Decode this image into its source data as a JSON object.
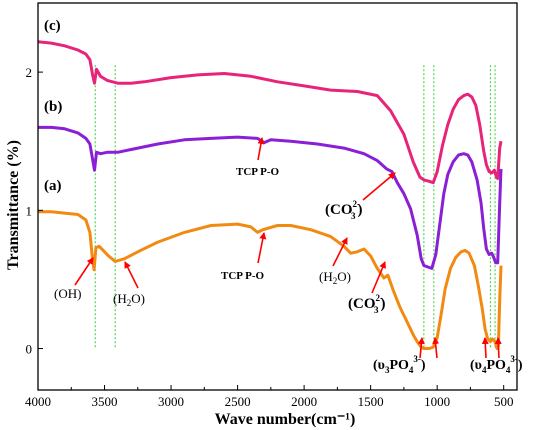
{
  "chart_data": {
    "type": "line",
    "xlabel": "Wave number(cm⁻¹)",
    "ylabel": "Transmittance (%)",
    "xlim": [
      4000,
      400
    ],
    "ylim": [
      -0.3,
      2.5
    ],
    "x_reversed": true,
    "x_ticks": [
      4000,
      3500,
      3000,
      2500,
      2000,
      1500,
      1000,
      500
    ],
    "y_ticks": [
      0,
      1,
      2
    ],
    "grid": false,
    "legend": "none",
    "series": [
      {
        "name": "(c)",
        "color": "#e8247a",
        "points": [
          [
            4000,
            2.22
          ],
          [
            3900,
            2.21
          ],
          [
            3800,
            2.19
          ],
          [
            3700,
            2.16
          ],
          [
            3640,
            2.13
          ],
          [
            3610,
            2.09
          ],
          [
            3590,
            1.98
          ],
          [
            3575,
            1.92
          ],
          [
            3560,
            2.02
          ],
          [
            3530,
            1.97
          ],
          [
            3480,
            1.94
          ],
          [
            3400,
            1.92
          ],
          [
            3300,
            1.92
          ],
          [
            3200,
            1.93
          ],
          [
            3000,
            1.96
          ],
          [
            2800,
            1.98
          ],
          [
            2600,
            1.99
          ],
          [
            2400,
            1.97
          ],
          [
            2200,
            1.93
          ],
          [
            2000,
            1.9
          ],
          [
            1800,
            1.87
          ],
          [
            1600,
            1.86
          ],
          [
            1450,
            1.83
          ],
          [
            1350,
            1.72
          ],
          [
            1250,
            1.55
          ],
          [
            1180,
            1.35
          ],
          [
            1130,
            1.24
          ],
          [
            1100,
            1.22
          ],
          [
            1060,
            1.21
          ],
          [
            1030,
            1.2
          ],
          [
            1000,
            1.28
          ],
          [
            960,
            1.47
          ],
          [
            920,
            1.62
          ],
          [
            880,
            1.73
          ],
          [
            840,
            1.8
          ],
          [
            800,
            1.83
          ],
          [
            770,
            1.84
          ],
          [
            740,
            1.82
          ],
          [
            710,
            1.76
          ],
          [
            680,
            1.62
          ],
          [
            650,
            1.43
          ],
          [
            630,
            1.33
          ],
          [
            610,
            1.28
          ],
          [
            590,
            1.27
          ],
          [
            570,
            1.29
          ],
          [
            555,
            1.24
          ],
          [
            545,
            1.23
          ],
          [
            530,
            1.45
          ],
          [
            520,
            1.5
          ]
        ]
      },
      {
        "name": "(b)",
        "color": "#8a1fd6",
        "points": [
          [
            4000,
            1.6
          ],
          [
            3900,
            1.6
          ],
          [
            3800,
            1.59
          ],
          [
            3700,
            1.56
          ],
          [
            3640,
            1.52
          ],
          [
            3610,
            1.48
          ],
          [
            3590,
            1.37
          ],
          [
            3575,
            1.29
          ],
          [
            3560,
            1.42
          ],
          [
            3530,
            1.41
          ],
          [
            3480,
            1.42
          ],
          [
            3400,
            1.42
          ],
          [
            3300,
            1.44
          ],
          [
            3100,
            1.48
          ],
          [
            2900,
            1.51
          ],
          [
            2700,
            1.52
          ],
          [
            2500,
            1.53
          ],
          [
            2350,
            1.52
          ],
          [
            2300,
            1.49
          ],
          [
            2250,
            1.51
          ],
          [
            2100,
            1.5
          ],
          [
            1900,
            1.48
          ],
          [
            1700,
            1.45
          ],
          [
            1550,
            1.41
          ],
          [
            1450,
            1.36
          ],
          [
            1380,
            1.3
          ],
          [
            1340,
            1.28
          ],
          [
            1300,
            1.2
          ],
          [
            1250,
            1.12
          ],
          [
            1200,
            1.01
          ],
          [
            1150,
            0.82
          ],
          [
            1120,
            0.65
          ],
          [
            1100,
            0.6
          ],
          [
            1070,
            0.59
          ],
          [
            1040,
            0.58
          ],
          [
            1010,
            0.68
          ],
          [
            980,
            0.9
          ],
          [
            950,
            1.12
          ],
          [
            920,
            1.26
          ],
          [
            880,
            1.35
          ],
          [
            840,
            1.4
          ],
          [
            800,
            1.41
          ],
          [
            770,
            1.4
          ],
          [
            740,
            1.35
          ],
          [
            700,
            1.22
          ],
          [
            670,
            1.05
          ],
          [
            650,
            0.87
          ],
          [
            630,
            0.72
          ],
          [
            610,
            0.68
          ],
          [
            590,
            0.69
          ],
          [
            575,
            0.66
          ],
          [
            560,
            0.62
          ],
          [
            545,
            0.62
          ],
          [
            530,
            1.05
          ],
          [
            520,
            1.3
          ]
        ]
      },
      {
        "name": "(a)",
        "color": "#f28a12",
        "points": [
          [
            4000,
            0.99
          ],
          [
            3900,
            0.99
          ],
          [
            3800,
            0.98
          ],
          [
            3700,
            0.97
          ],
          [
            3640,
            0.93
          ],
          [
            3610,
            0.84
          ],
          [
            3590,
            0.64
          ],
          [
            3578,
            0.57
          ],
          [
            3565,
            0.73
          ],
          [
            3540,
            0.74
          ],
          [
            3510,
            0.71
          ],
          [
            3470,
            0.67
          ],
          [
            3420,
            0.63
          ],
          [
            3350,
            0.65
          ],
          [
            3250,
            0.7
          ],
          [
            3100,
            0.77
          ],
          [
            2900,
            0.84
          ],
          [
            2700,
            0.89
          ],
          [
            2500,
            0.9
          ],
          [
            2400,
            0.88
          ],
          [
            2350,
            0.84
          ],
          [
            2310,
            0.86
          ],
          [
            2200,
            0.89
          ],
          [
            2100,
            0.89
          ],
          [
            1950,
            0.86
          ],
          [
            1800,
            0.81
          ],
          [
            1700,
            0.74
          ],
          [
            1650,
            0.69
          ],
          [
            1600,
            0.7
          ],
          [
            1550,
            0.72
          ],
          [
            1500,
            0.67
          ],
          [
            1450,
            0.58
          ],
          [
            1400,
            0.51
          ],
          [
            1370,
            0.53
          ],
          [
            1330,
            0.42
          ],
          [
            1280,
            0.3
          ],
          [
            1230,
            0.2
          ],
          [
            1180,
            0.1
          ],
          [
            1150,
            0.05
          ],
          [
            1120,
            0.01
          ],
          [
            1100,
            0.0
          ],
          [
            1060,
            0.0
          ],
          [
            1030,
            0.01
          ],
          [
            1000,
            0.08
          ],
          [
            970,
            0.25
          ],
          [
            940,
            0.43
          ],
          [
            900,
            0.58
          ],
          [
            860,
            0.66
          ],
          [
            820,
            0.7
          ],
          [
            790,
            0.71
          ],
          [
            760,
            0.69
          ],
          [
            720,
            0.6
          ],
          [
            690,
            0.45
          ],
          [
            660,
            0.28
          ],
          [
            640,
            0.14
          ],
          [
            620,
            0.07
          ],
          [
            600,
            0.05
          ],
          [
            585,
            0.07
          ],
          [
            565,
            0.05
          ],
          [
            550,
            0.0
          ],
          [
            540,
            0.02
          ],
          [
            530,
            0.35
          ],
          [
            520,
            0.6
          ]
        ]
      }
    ],
    "guide_lines": [
      3570,
      3420,
      1100,
      1025,
      600,
      565
    ],
    "guide_color": "#33cc33"
  },
  "labels": {
    "curve_c": "(c)",
    "curve_b": "(b)",
    "curve_a": "(a)",
    "tcp_b": "TCP P-O",
    "tcp_a": "TCP P-O",
    "oh": "(OH)",
    "h2o_a": "(H",
    "h2o_a_sub": "2",
    "h2o_a_end": "O)",
    "h2o_mid": "(H",
    "h2o_mid_sub": "2",
    "h2o_mid_end": "O)",
    "co3_upper": "(CO",
    "co3_upper_sup": "2-",
    "co3_upper_sub": "3",
    "co3_upper_end": ")",
    "co3_lower": "(CO",
    "co3_lower_sup": "2-",
    "co3_lower_sub": "3",
    "co3_lower_end": ")",
    "v3_open": "(υ",
    "v3_sub": "3",
    "v3_po": "PO",
    "v3_po_sub": "4",
    "v3_po_sup": "3-",
    "v3_close": ")",
    "v4_open": "(υ",
    "v4_sub": "4",
    "v4_po": "PO",
    "v4_po_sub": "4",
    "v4_po_sup": "3-",
    "v4_close": ")"
  },
  "colors": {
    "arrow": "#ff0000",
    "axis": "#000000"
  }
}
